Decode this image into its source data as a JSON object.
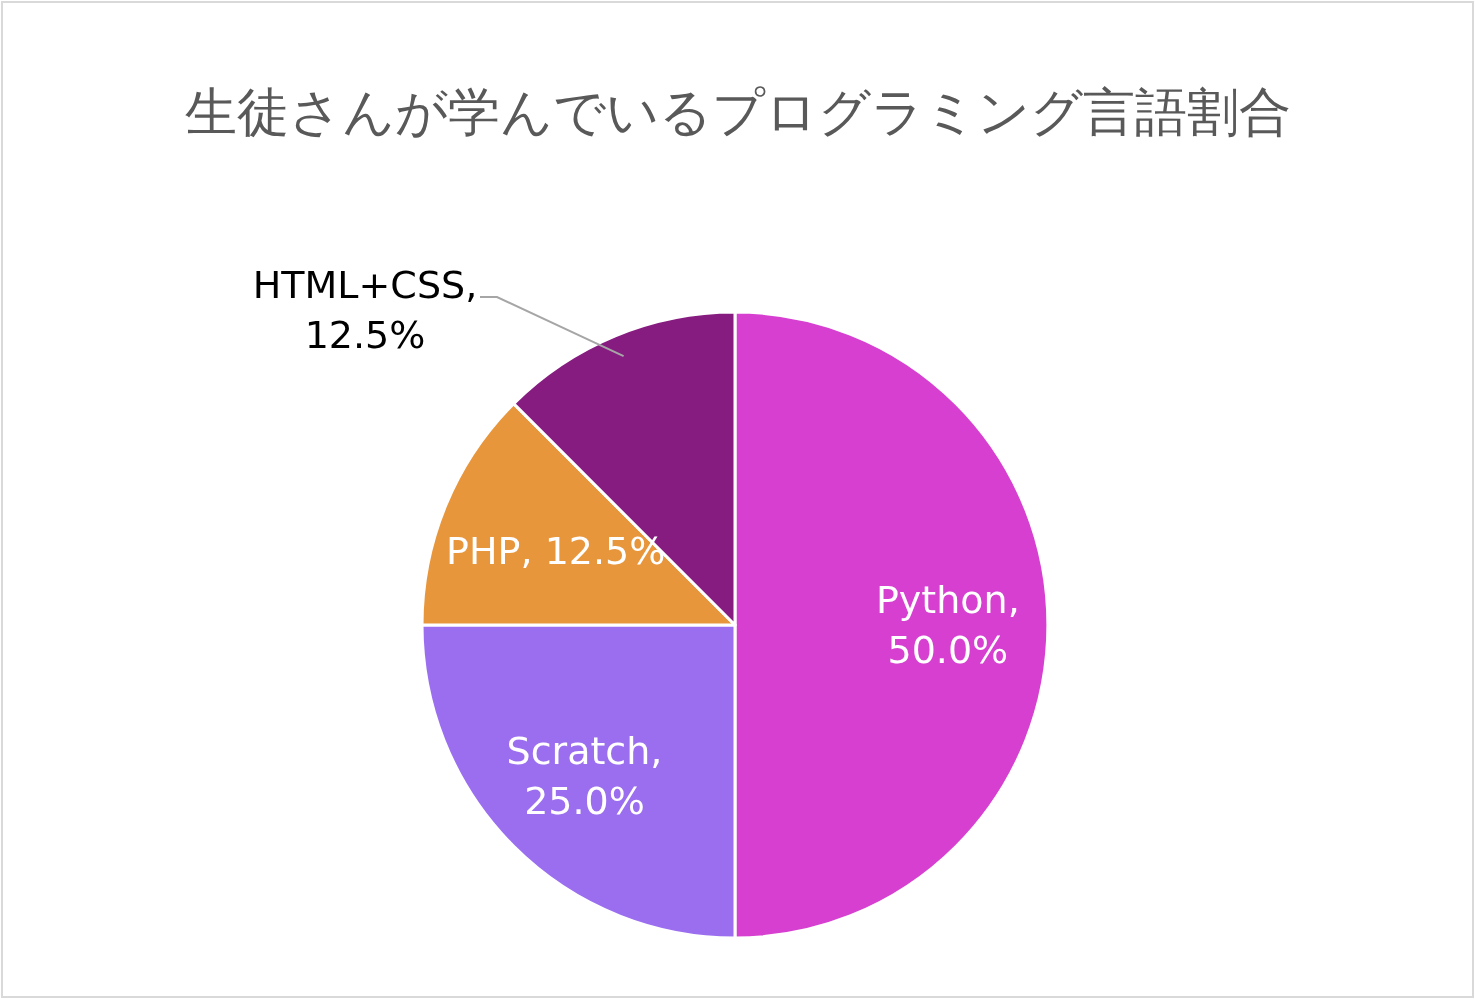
{
  "chart_data": {
    "type": "pie",
    "title": "生徒さんが学んでいるプログラミング言語割合",
    "categories": [
      "Python",
      "Scratch",
      "PHP",
      "HTML+CSS"
    ],
    "values": [
      50,
      25,
      12.5,
      12.5
    ],
    "colors": [
      "#d63fd0",
      "#9b6ef0",
      "#e8963c",
      "#861b80"
    ],
    "value_labels": [
      ", 50.0%",
      ", 25.0%",
      ", 12.5%",
      ", 12.5%"
    ],
    "legend": false
  }
}
